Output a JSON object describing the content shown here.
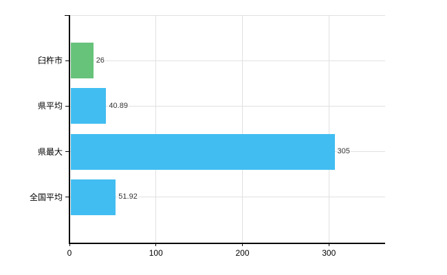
{
  "chart_data": {
    "type": "bar",
    "orientation": "horizontal",
    "title": "",
    "xlabel": "",
    "ylabel": "",
    "categories": [
      "臼杵市",
      "県平均",
      "県最大",
      "全国平均"
    ],
    "values": [
      26,
      40.89,
      305,
      51.92
    ],
    "value_labels": [
      "26",
      "40.89",
      "305",
      "51.92"
    ],
    "bar_colors": [
      "#67c27a",
      "#41bdf1",
      "#41bdf1",
      "#41bdf1"
    ],
    "xticks": [
      0,
      100,
      200,
      300
    ],
    "xtick_labels": [
      "0",
      "100",
      "200",
      "300"
    ],
    "xlim": [
      0,
      365
    ],
    "grid": true,
    "legend": false
  },
  "colors": {
    "background": "#ffffff",
    "gridline": "#e0e0e0",
    "axis": "#000000",
    "value_text": "#333333",
    "label_text": "#000000",
    "green_bar": "#67c27a",
    "blue_bar": "#41bdf1"
  }
}
